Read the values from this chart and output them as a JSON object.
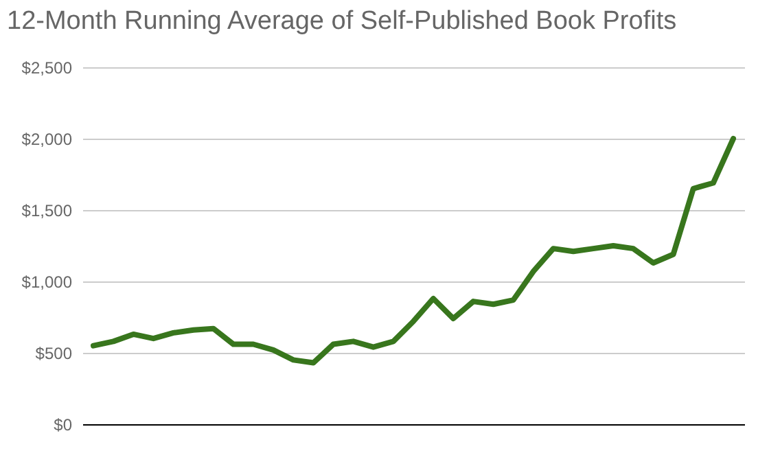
{
  "chart_data": {
    "type": "line",
    "title": "12-Month Running Average of Self-Published Book Profits",
    "categories": [
      null,
      null,
      null,
      null,
      null,
      null,
      null,
      null,
      null,
      null,
      null,
      null,
      null,
      null,
      null,
      null,
      null,
      null,
      null,
      null,
      null,
      null,
      null,
      null,
      null,
      null,
      null,
      null,
      null,
      null,
      null,
      null,
      null
    ],
    "series": [
      {
        "color": "#38761d",
        "values": [
          550,
          580,
          630,
          600,
          640,
          660,
          670,
          560,
          560,
          520,
          450,
          430,
          560,
          580,
          540,
          580,
          720,
          880,
          740,
          860,
          840,
          870,
          1070,
          1230,
          1210,
          1230,
          1250,
          1230,
          1130,
          1190,
          1650,
          1690,
          2000
        ]
      }
    ],
    "ylim": [
      0,
      2500
    ],
    "yticks": [
      {
        "value": 0,
        "label": "$0"
      },
      {
        "value": 500,
        "label": "$500"
      },
      {
        "value": 1000,
        "label": "$1,000"
      },
      {
        "value": 1500,
        "label": "$1,500"
      },
      {
        "value": 2000,
        "label": "$2,000"
      },
      {
        "value": 2500,
        "label": "$2,500"
      }
    ],
    "grid": "y",
    "marker": "none",
    "line_style": "solid",
    "tick_labels": "y"
  }
}
